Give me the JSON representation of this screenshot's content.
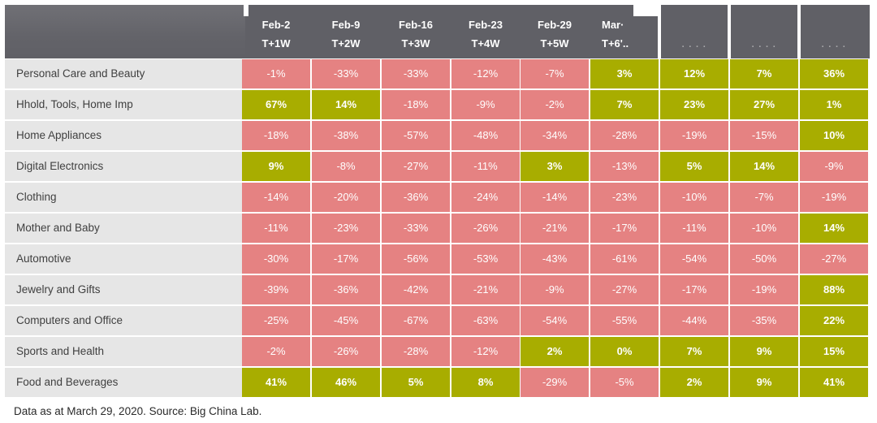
{
  "chart_data": {
    "type": "table",
    "columns": [
      {
        "date": "Feb-2",
        "week": "T+1W"
      },
      {
        "date": "Feb-9",
        "week": "T+2W"
      },
      {
        "date": "Feb-16",
        "week": "T+3W"
      },
      {
        "date": "Feb-23",
        "week": "T+4W"
      },
      {
        "date": "Feb-29",
        "week": "T+5W"
      },
      {
        "date": "Mar·",
        "week": "T+6'.."
      },
      {
        "date": "",
        "week": "· · · ·"
      },
      {
        "date": "",
        "week": "· · · ·"
      },
      {
        "date": "",
        "week": "· · · ·"
      }
    ],
    "rows": [
      {
        "label": "Personal Care and Beauty",
        "values": [
          -1,
          -33,
          -33,
          -12,
          -7,
          3,
          12,
          7,
          36
        ]
      },
      {
        "label": "Hhold, Tools, Home Imp",
        "values": [
          67,
          14,
          -18,
          -9,
          -2,
          7,
          23,
          27,
          1
        ]
      },
      {
        "label": "Home Appliances",
        "values": [
          -18,
          -38,
          -57,
          -48,
          -34,
          -28,
          -19,
          -15,
          10
        ]
      },
      {
        "label": "Digital Electronics",
        "values": [
          9,
          -8,
          -27,
          -11,
          3,
          -13,
          5,
          14,
          -9
        ]
      },
      {
        "label": "Clothing",
        "values": [
          -14,
          -20,
          -36,
          -24,
          -14,
          -23,
          -10,
          -7,
          -19
        ]
      },
      {
        "label": "Mother and Baby",
        "values": [
          -11,
          -23,
          -33,
          -26,
          -21,
          -17,
          -11,
          -10,
          14
        ]
      },
      {
        "label": "Automotive",
        "values": [
          -30,
          -17,
          -56,
          -53,
          -43,
          -61,
          -54,
          -50,
          -27
        ]
      },
      {
        "label": "Jewelry and Gifts",
        "values": [
          -39,
          -36,
          -42,
          -21,
          -9,
          -27,
          -17,
          -19,
          88
        ]
      },
      {
        "label": "Computers and Office",
        "values": [
          -25,
          -45,
          -67,
          -63,
          -54,
          -55,
          -44,
          -35,
          22
        ]
      },
      {
        "label": "Sports and Health",
        "values": [
          -2,
          -26,
          -28,
          -12,
          2,
          0,
          7,
          9,
          15
        ]
      },
      {
        "label": "Food and Beverages",
        "values": [
          41,
          46,
          5,
          8,
          -29,
          -5,
          2,
          9,
          41
        ]
      }
    ],
    "value_suffix": "%",
    "colors": {
      "positive": "#a8ad00",
      "negative": "#e58282",
      "header": "#606066",
      "label_bg": "#e6e6e6"
    }
  },
  "footnote": "Data as at March 29, 2020. Source: Big China Lab."
}
